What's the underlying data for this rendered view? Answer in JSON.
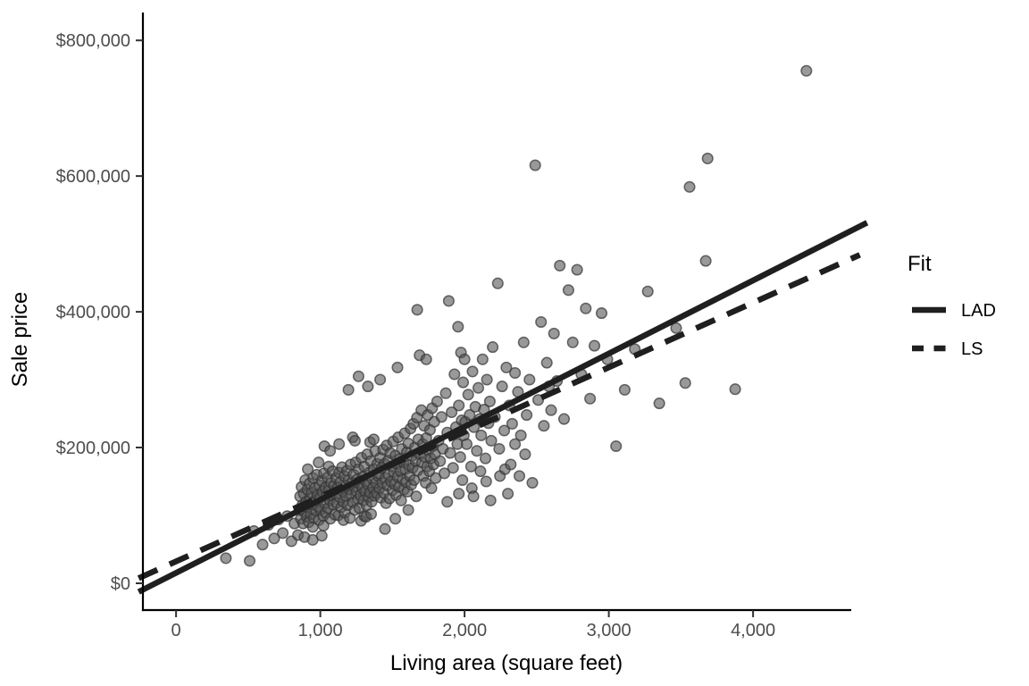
{
  "chart_data": {
    "type": "scatter",
    "title": "",
    "xlabel": "Living area (square feet)",
    "ylabel": "Sale price",
    "xlim": [
      -230,
      4693
    ],
    "ylim": [
      -39500,
      841000
    ],
    "grid": "off",
    "legend_position": "right",
    "x_ticks": {
      "values": [
        0,
        1000,
        2000,
        3000,
        4000
      ],
      "labels": [
        "0",
        "1,000",
        "2,000",
        "3,000",
        "4,000"
      ]
    },
    "y_ticks": {
      "values": [
        0,
        200000,
        400000,
        600000,
        800000
      ],
      "labels": [
        "$0",
        "$200,000",
        "$400,000",
        "$600,000",
        "$800,000"
      ]
    },
    "legend": {
      "title": "Fit",
      "items": [
        {
          "label": "LAD",
          "style": "solid"
        },
        {
          "label": "LS",
          "style": "dashed"
        }
      ]
    },
    "lines": [
      {
        "name": "LAD",
        "style": "solid",
        "intercept": 15400,
        "slope": 107.7,
        "x_start": -260,
        "x_end": 4790
      },
      {
        "name": "LS",
        "style": "dashed",
        "intercept": 32200,
        "slope": 95.3,
        "x_start": -260,
        "x_end": 4740
      }
    ],
    "points_units": {
      "x": "square feet",
      "y": "thousands of dollars"
    },
    "points": [
      [
        345,
        37
      ],
      [
        510,
        33
      ],
      [
        540,
        77
      ],
      [
        600,
        57
      ],
      [
        640,
        86
      ],
      [
        680,
        66
      ],
      [
        710,
        94
      ],
      [
        740,
        74
      ],
      [
        770,
        99
      ],
      [
        800,
        62
      ],
      [
        820,
        88
      ],
      [
        845,
        71
      ],
      [
        855,
        108
      ],
      [
        860,
        128
      ],
      [
        865,
        95
      ],
      [
        870,
        142
      ],
      [
        875,
        115
      ],
      [
        880,
        88
      ],
      [
        885,
        132
      ],
      [
        890,
        68
      ],
      [
        890,
        105
      ],
      [
        895,
        152
      ],
      [
        900,
        120
      ],
      [
        905,
        98
      ],
      [
        910,
        138
      ],
      [
        913,
        168
      ],
      [
        915,
        112
      ],
      [
        920,
        90
      ],
      [
        925,
        147
      ],
      [
        930,
        125
      ],
      [
        935,
        102
      ],
      [
        940,
        133
      ],
      [
        945,
        117
      ],
      [
        947,
        64
      ],
      [
        948,
        83
      ],
      [
        950,
        155
      ],
      [
        955,
        96
      ],
      [
        960,
        140
      ],
      [
        965,
        122
      ],
      [
        970,
        107
      ],
      [
        975,
        160
      ],
      [
        980,
        130
      ],
      [
        985,
        113
      ],
      [
        988,
        178
      ],
      [
        990,
        93
      ],
      [
        995,
        144
      ],
      [
        1000,
        126
      ],
      [
        1005,
        109
      ],
      [
        1010,
        70
      ],
      [
        1010,
        151
      ],
      [
        1015,
        135
      ],
      [
        1020,
        99
      ],
      [
        1022,
        85
      ],
      [
        1025,
        162
      ],
      [
        1028,
        202
      ],
      [
        1030,
        118
      ],
      [
        1035,
        141
      ],
      [
        1040,
        104
      ],
      [
        1045,
        129
      ],
      [
        1050,
        156
      ],
      [
        1055,
        111
      ],
      [
        1058,
        172
      ],
      [
        1060,
        137
      ],
      [
        1065,
        122
      ],
      [
        1068,
        195
      ],
      [
        1070,
        95
      ],
      [
        1075,
        148
      ],
      [
        1080,
        130
      ],
      [
        1085,
        165
      ],
      [
        1090,
        116
      ],
      [
        1095,
        143
      ],
      [
        1100,
        101
      ],
      [
        1105,
        132
      ],
      [
        1110,
        155
      ],
      [
        1115,
        118
      ],
      [
        1120,
        141
      ],
      [
        1125,
        100
      ],
      [
        1130,
        163
      ],
      [
        1130,
        205
      ],
      [
        1135,
        127
      ],
      [
        1140,
        149
      ],
      [
        1145,
        112
      ],
      [
        1150,
        171
      ],
      [
        1155,
        136
      ],
      [
        1160,
        93
      ],
      [
        1160,
        120
      ],
      [
        1165,
        158
      ],
      [
        1170,
        104
      ],
      [
        1175,
        144
      ],
      [
        1180,
        128
      ],
      [
        1185,
        166
      ],
      [
        1190,
        115
      ],
      [
        1195,
        152
      ],
      [
        1195,
        285
      ],
      [
        1200,
        138
      ],
      [
        1205,
        96
      ],
      [
        1210,
        175
      ],
      [
        1215,
        131
      ],
      [
        1220,
        148
      ],
      [
        1225,
        119
      ],
      [
        1225,
        215
      ],
      [
        1230,
        160
      ],
      [
        1235,
        142
      ],
      [
        1240,
        108
      ],
      [
        1240,
        210
      ],
      [
        1245,
        178
      ],
      [
        1250,
        135
      ],
      [
        1255,
        153
      ],
      [
        1260,
        124
      ],
      [
        1265,
        168
      ],
      [
        1265,
        305
      ],
      [
        1270,
        111
      ],
      [
        1275,
        146
      ],
      [
        1280,
        130
      ],
      [
        1282,
        92
      ],
      [
        1285,
        185
      ],
      [
        1290,
        140
      ],
      [
        1295,
        157
      ],
      [
        1300,
        122
      ],
      [
        1305,
        99
      ],
      [
        1305,
        172
      ],
      [
        1310,
        136
      ],
      [
        1315,
        150
      ],
      [
        1318,
        98
      ],
      [
        1320,
        115
      ],
      [
        1325,
        190
      ],
      [
        1330,
        145
      ],
      [
        1330,
        290
      ],
      [
        1335,
        127
      ],
      [
        1340,
        163
      ],
      [
        1345,
        134
      ],
      [
        1345,
        208
      ],
      [
        1350,
        180
      ],
      [
        1352,
        102
      ],
      [
        1355,
        120
      ],
      [
        1360,
        154
      ],
      [
        1365,
        141
      ],
      [
        1370,
        168
      ],
      [
        1370,
        212
      ],
      [
        1375,
        129
      ],
      [
        1380,
        195
      ],
      [
        1385,
        148
      ],
      [
        1390,
        133
      ],
      [
        1395,
        176
      ],
      [
        1400,
        158
      ],
      [
        1405,
        162
      ],
      [
        1410,
        140
      ],
      [
        1415,
        185
      ],
      [
        1415,
        300
      ],
      [
        1420,
        126
      ],
      [
        1425,
        170
      ],
      [
        1430,
        148
      ],
      [
        1435,
        197
      ],
      [
        1440,
        133
      ],
      [
        1445,
        176
      ],
      [
        1448,
        80
      ],
      [
        1450,
        155
      ],
      [
        1455,
        118
      ],
      [
        1460,
        203
      ],
      [
        1465,
        144
      ],
      [
        1470,
        181
      ],
      [
        1475,
        160
      ],
      [
        1480,
        125
      ],
      [
        1485,
        192
      ],
      [
        1490,
        150
      ],
      [
        1495,
        172
      ],
      [
        1500,
        137
      ],
      [
        1505,
        209
      ],
      [
        1510,
        164
      ],
      [
        1515,
        146
      ],
      [
        1520,
        95
      ],
      [
        1520,
        188
      ],
      [
        1525,
        130
      ],
      [
        1530,
        176
      ],
      [
        1535,
        157
      ],
      [
        1535,
        318
      ],
      [
        1540,
        215
      ],
      [
        1545,
        142
      ],
      [
        1550,
        183
      ],
      [
        1555,
        165
      ],
      [
        1560,
        122
      ],
      [
        1565,
        198
      ],
      [
        1570,
        153
      ],
      [
        1575,
        178
      ],
      [
        1580,
        138
      ],
      [
        1585,
        221
      ],
      [
        1590,
        168
      ],
      [
        1595,
        149
      ],
      [
        1600,
        193
      ],
      [
        1605,
        135
      ],
      [
        1610,
        108
      ],
      [
        1610,
        206
      ],
      [
        1615,
        174
      ],
      [
        1620,
        158
      ],
      [
        1625,
        228
      ],
      [
        1630,
        145
      ],
      [
        1635,
        188
      ],
      [
        1640,
        170
      ],
      [
        1645,
        235
      ],
      [
        1650,
        152
      ],
      [
        1655,
        200
      ],
      [
        1660,
        180
      ],
      [
        1665,
        128
      ],
      [
        1670,
        244
      ],
      [
        1672,
        403
      ],
      [
        1675,
        166
      ],
      [
        1680,
        212
      ],
      [
        1688,
        336
      ],
      [
        1690,
        190
      ],
      [
        1700,
        255
      ],
      [
        1705,
        178
      ],
      [
        1710,
        205
      ],
      [
        1715,
        158
      ],
      [
        1720,
        232
      ],
      [
        1725,
        186
      ],
      [
        1730,
        148
      ],
      [
        1734,
        330
      ],
      [
        1735,
        214
      ],
      [
        1740,
        172
      ],
      [
        1745,
        248
      ],
      [
        1750,
        196
      ],
      [
        1755,
        165
      ],
      [
        1760,
        226
      ],
      [
        1765,
        184
      ],
      [
        1770,
        140
      ],
      [
        1775,
        258
      ],
      [
        1780,
        202
      ],
      [
        1785,
        175
      ],
      [
        1790,
        238
      ],
      [
        1795,
        190
      ],
      [
        1800,
        155
      ],
      [
        1810,
        268
      ],
      [
        1820,
        210
      ],
      [
        1830,
        180
      ],
      [
        1840,
        245
      ],
      [
        1850,
        198
      ],
      [
        1860,
        162
      ],
      [
        1870,
        280
      ],
      [
        1880,
        120
      ],
      [
        1880,
        222
      ],
      [
        1890,
        416
      ],
      [
        1900,
        192
      ],
      [
        1910,
        252
      ],
      [
        1920,
        170
      ],
      [
        1930,
        308
      ],
      [
        1940,
        230
      ],
      [
        1950,
        205
      ],
      [
        1955,
        378
      ],
      [
        1960,
        132
      ],
      [
        1960,
        262
      ],
      [
        1970,
        186
      ],
      [
        1975,
        340
      ],
      [
        1980,
        240
      ],
      [
        1985,
        152
      ],
      [
        1990,
        296
      ],
      [
        1995,
        218
      ],
      [
        2000,
        330
      ],
      [
        2005,
        238
      ],
      [
        2015,
        205
      ],
      [
        2025,
        278
      ],
      [
        2035,
        248
      ],
      [
        2045,
        172
      ],
      [
        2050,
        140
      ],
      [
        2055,
        312
      ],
      [
        2062,
        128
      ],
      [
        2065,
        230
      ],
      [
        2075,
        260
      ],
      [
        2085,
        195
      ],
      [
        2095,
        288
      ],
      [
        2105,
        242
      ],
      [
        2110,
        165
      ],
      [
        2115,
        218
      ],
      [
        2125,
        330
      ],
      [
        2135,
        256
      ],
      [
        2145,
        184
      ],
      [
        2150,
        150
      ],
      [
        2155,
        300
      ],
      [
        2165,
        236
      ],
      [
        2175,
        268
      ],
      [
        2180,
        122
      ],
      [
        2185,
        210
      ],
      [
        2195,
        348
      ],
      [
        2210,
        245
      ],
      [
        2230,
        442
      ],
      [
        2240,
        198
      ],
      [
        2245,
        158
      ],
      [
        2260,
        290
      ],
      [
        2275,
        225
      ],
      [
        2280,
        168
      ],
      [
        2290,
        318
      ],
      [
        2300,
        132
      ],
      [
        2310,
        262
      ],
      [
        2320,
        175
      ],
      [
        2330,
        235
      ],
      [
        2350,
        205
      ],
      [
        2350,
        310
      ],
      [
        2370,
        282
      ],
      [
        2380,
        158
      ],
      [
        2390,
        218
      ],
      [
        2410,
        355
      ],
      [
        2420,
        190
      ],
      [
        2430,
        248
      ],
      [
        2450,
        300
      ],
      [
        2470,
        148
      ],
      [
        2490,
        616
      ],
      [
        2510,
        270
      ],
      [
        2530,
        385
      ],
      [
        2550,
        232
      ],
      [
        2570,
        325
      ],
      [
        2585,
        290
      ],
      [
        2600,
        255
      ],
      [
        2620,
        368
      ],
      [
        2640,
        298
      ],
      [
        2660,
        468
      ],
      [
        2690,
        242
      ],
      [
        2720,
        432
      ],
      [
        2750,
        355
      ],
      [
        2780,
        462
      ],
      [
        2810,
        308
      ],
      [
        2840,
        405
      ],
      [
        2870,
        272
      ],
      [
        2900,
        350
      ],
      [
        2950,
        398
      ],
      [
        2990,
        330
      ],
      [
        3050,
        202
      ],
      [
        3110,
        285
      ],
      [
        3180,
        345
      ],
      [
        3270,
        430
      ],
      [
        3350,
        265
      ],
      [
        3467,
        376
      ],
      [
        3530,
        295
      ],
      [
        3560,
        584
      ],
      [
        3672,
        475
      ],
      [
        3685,
        626
      ],
      [
        3876,
        286
      ],
      [
        4370,
        755
      ]
    ],
    "point_style": {
      "fill": "#555555",
      "fill_opacity": 0.6,
      "stroke": "#333333",
      "stroke_opacity": 0.7,
      "radius": 5.8
    },
    "line_color": "#1f1f1f",
    "tick_label_color": "#4d4d4d",
    "axis_color": "#000000"
  }
}
